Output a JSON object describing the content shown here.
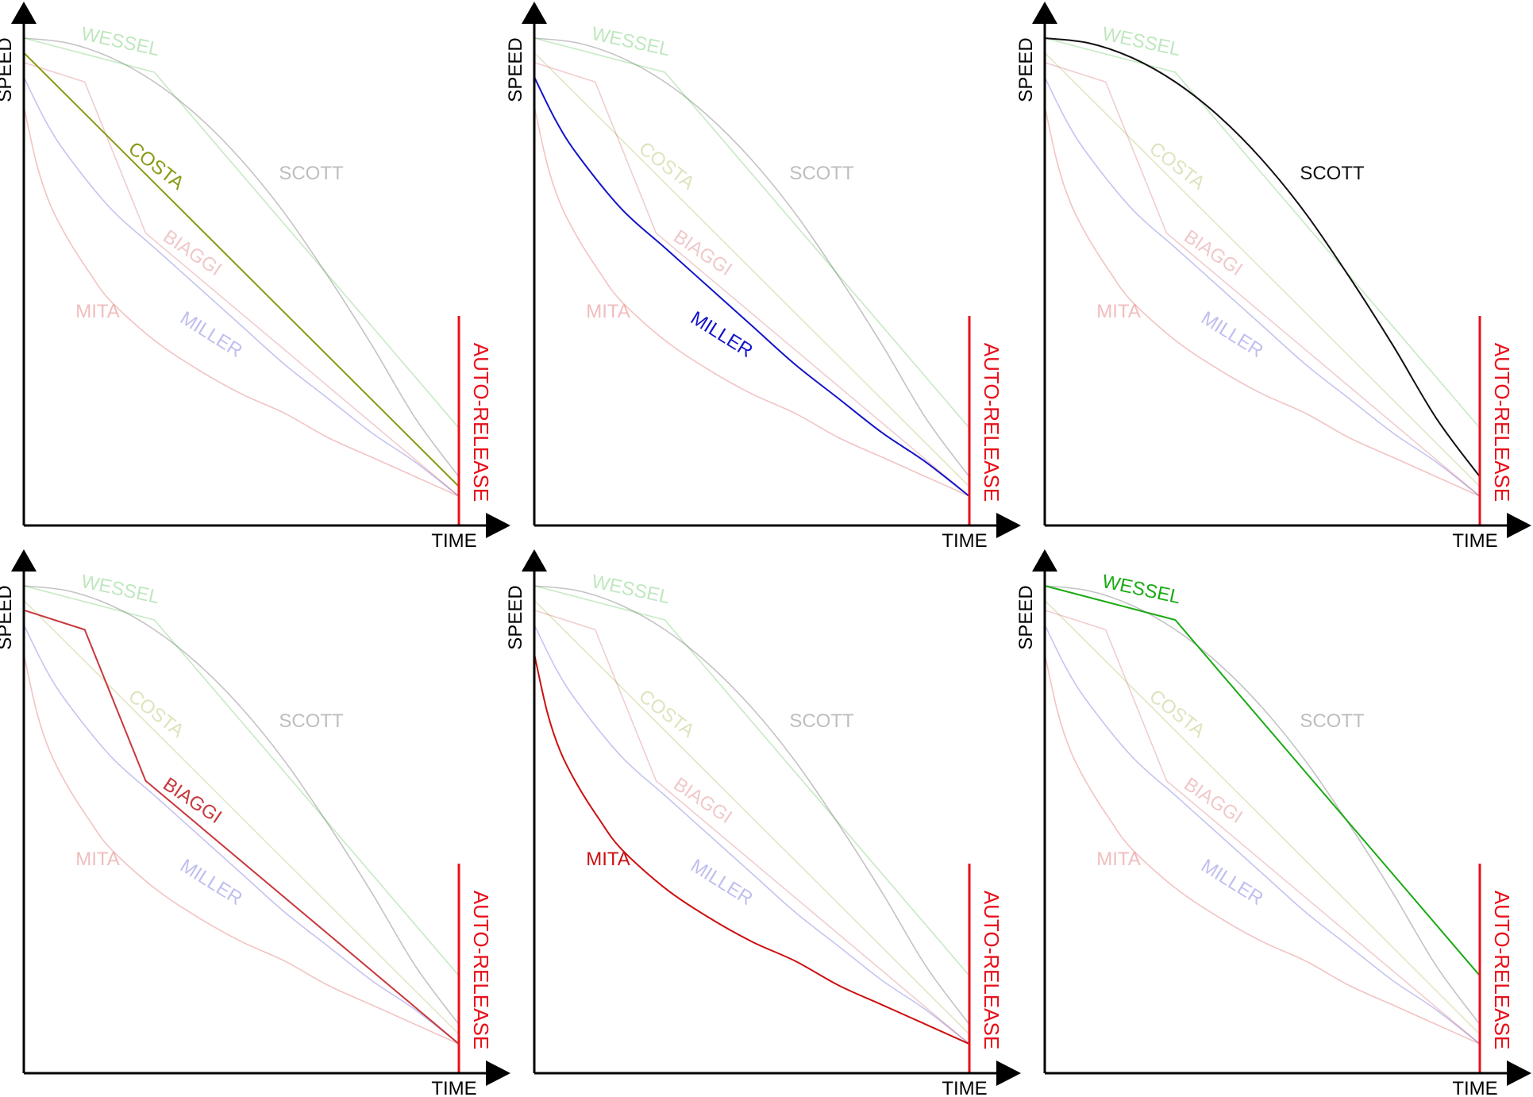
{
  "chart_data": {
    "type": "line",
    "x_label": "TIME",
    "y_label": "SPEED",
    "marker_label": "AUTO-RELEASE",
    "marker_color": "#e8101a",
    "axis_color": "#000000",
    "series": [
      {
        "name": "WESSEL",
        "color": "#1aaa14",
        "points": [
          [
            0,
            100
          ],
          [
            30,
            93
          ],
          [
            100,
            20
          ]
        ]
      },
      {
        "name": "COSTA",
        "color": "#8a9a12",
        "points": [
          [
            0,
            97
          ],
          [
            100,
            8
          ]
        ]
      },
      {
        "name": "SCOTT",
        "color": "#111111",
        "points": [
          [
            0,
            100
          ],
          [
            10,
            99
          ],
          [
            20,
            96
          ],
          [
            30,
            91
          ],
          [
            40,
            84
          ],
          [
            50,
            75
          ],
          [
            60,
            64
          ],
          [
            70,
            51
          ],
          [
            80,
            37
          ],
          [
            90,
            22
          ],
          [
            100,
            10
          ]
        ]
      },
      {
        "name": "BIAGGI",
        "color": "#c8383c",
        "points": [
          [
            0,
            95
          ],
          [
            14,
            91
          ],
          [
            28,
            60
          ],
          [
            100,
            6
          ]
        ]
      },
      {
        "name": "MILLER",
        "color": "#1414c8",
        "points": [
          [
            0,
            92
          ],
          [
            5,
            83
          ],
          [
            10,
            76
          ],
          [
            20,
            65
          ],
          [
            30,
            57
          ],
          [
            40,
            49
          ],
          [
            50,
            41
          ],
          [
            60,
            33
          ],
          [
            70,
            26
          ],
          [
            80,
            19
          ],
          [
            90,
            13
          ],
          [
            100,
            6
          ]
        ]
      },
      {
        "name": "MITA",
        "color": "#cc1010",
        "points": [
          [
            0,
            86
          ],
          [
            3,
            74
          ],
          [
            6,
            66
          ],
          [
            10,
            59
          ],
          [
            15,
            52
          ],
          [
            20,
            46
          ],
          [
            30,
            38
          ],
          [
            40,
            32
          ],
          [
            50,
            27
          ],
          [
            60,
            23
          ],
          [
            70,
            18
          ],
          [
            80,
            14
          ],
          [
            90,
            10
          ],
          [
            100,
            6
          ]
        ]
      }
    ],
    "panels": [
      {
        "highlight": "COSTA"
      },
      {
        "highlight": "MILLER"
      },
      {
        "highlight": "SCOTT"
      },
      {
        "highlight": "BIAGGI"
      },
      {
        "highlight": "MITA"
      },
      {
        "highlight": "WESSEL"
      }
    ]
  }
}
